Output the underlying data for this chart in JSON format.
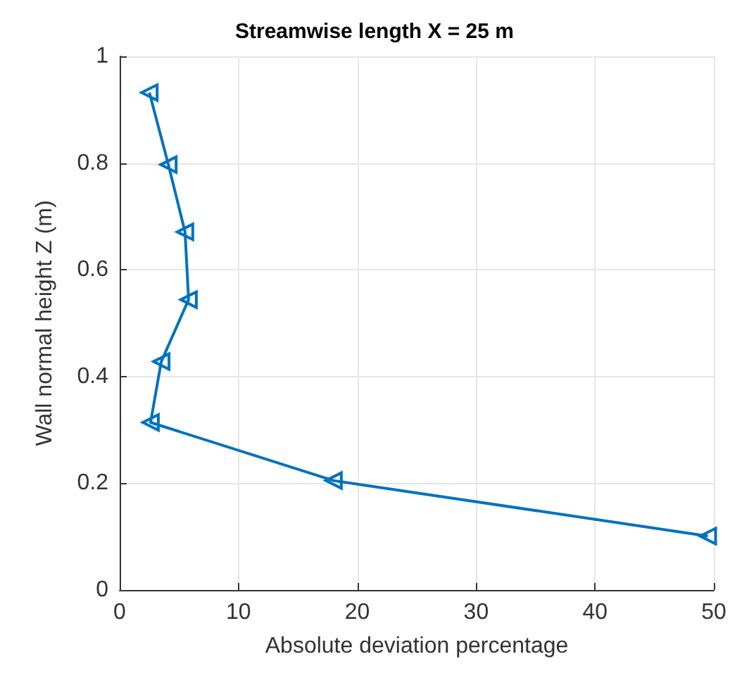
{
  "chart_data": {
    "type": "line",
    "title": "Streamwise length X = 25 m",
    "xlabel": "Absolute deviation percentage",
    "ylabel": "Wall normal height Z (m)",
    "series": [
      {
        "color": "#0072bd",
        "x": [
          49.5,
          18.0,
          2.6,
          3.5,
          5.8,
          5.5,
          4.1,
          2.5
        ],
        "values": [
          0.101,
          0.205,
          0.314,
          0.428,
          0.544,
          0.671,
          0.797,
          0.932
        ]
      }
    ],
    "xlim": [
      0,
      50
    ],
    "xticks": [
      0,
      10,
      20,
      30,
      40,
      50
    ],
    "ylim": [
      0,
      1
    ],
    "yticks": [
      0,
      0.2,
      0.4,
      0.6,
      0.8,
      1
    ],
    "grid": true,
    "marker": "triangle",
    "line_style": "solid"
  }
}
